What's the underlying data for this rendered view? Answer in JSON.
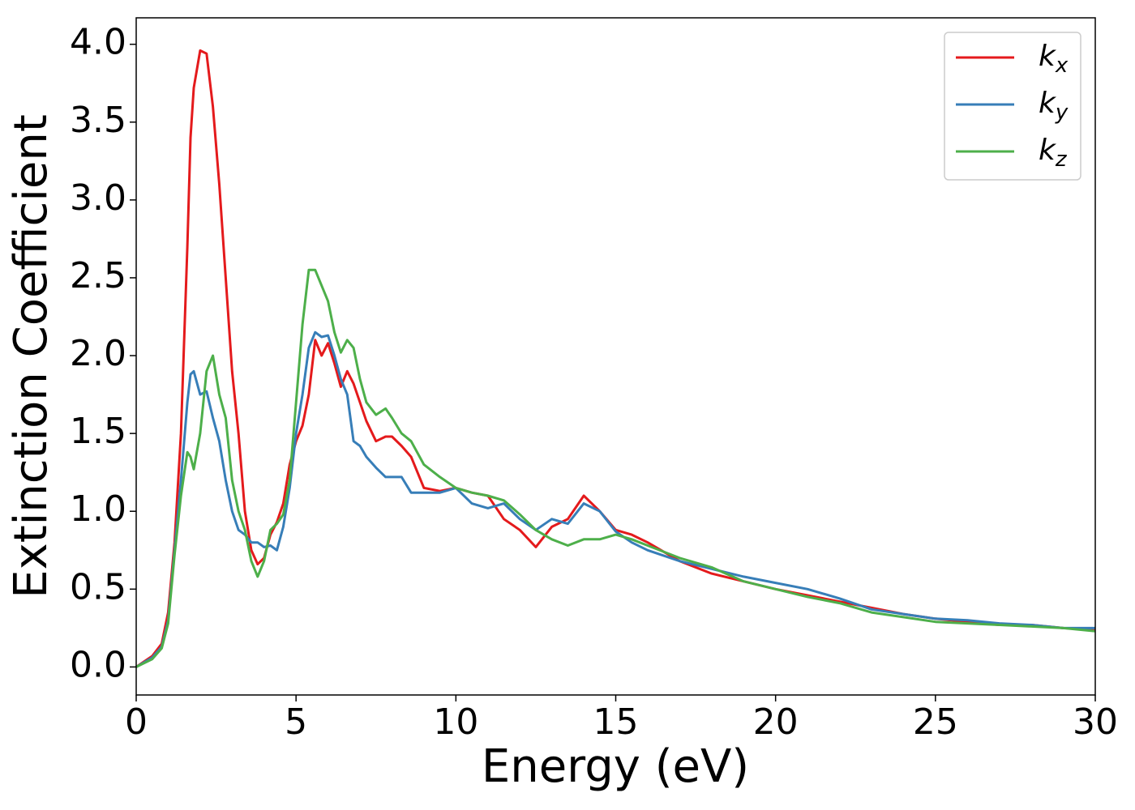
{
  "chart_data": {
    "type": "line",
    "xlabel": "Energy (eV)",
    "ylabel": "Extinction Coefficient",
    "x": [
      0,
      0.5,
      0.8,
      1.0,
      1.2,
      1.4,
      1.6,
      1.7,
      1.8,
      2.0,
      2.2,
      2.4,
      2.6,
      2.8,
      3.0,
      3.2,
      3.4,
      3.6,
      3.8,
      4.0,
      4.2,
      4.4,
      4.6,
      4.8,
      5.0,
      5.2,
      5.4,
      5.6,
      5.8,
      6.0,
      6.2,
      6.4,
      6.6,
      6.8,
      7.0,
      7.2,
      7.5,
      7.8,
      8.0,
      8.3,
      8.6,
      9.0,
      9.5,
      10,
      10.5,
      11,
      11.5,
      12,
      12.5,
      13,
      13.5,
      14,
      14.5,
      15,
      15.5,
      16,
      17,
      18,
      19,
      20,
      21,
      22,
      23,
      24,
      25,
      26,
      27,
      28,
      29,
      30
    ],
    "series": [
      {
        "name": "kx",
        "color": "#e41a1c",
        "values": [
          0,
          0.07,
          0.15,
          0.35,
          0.8,
          1.5,
          2.7,
          3.4,
          3.72,
          3.96,
          3.94,
          3.6,
          3.1,
          2.5,
          1.9,
          1.5,
          1.0,
          0.75,
          0.66,
          0.7,
          0.85,
          0.93,
          1.05,
          1.3,
          1.45,
          1.55,
          1.75,
          2.1,
          2.0,
          2.08,
          1.95,
          1.8,
          1.9,
          1.82,
          1.7,
          1.58,
          1.45,
          1.48,
          1.48,
          1.42,
          1.35,
          1.15,
          1.13,
          1.15,
          1.12,
          1.1,
          0.95,
          0.88,
          0.77,
          0.9,
          0.95,
          1.1,
          1.0,
          0.88,
          0.85,
          0.8,
          0.68,
          0.6,
          0.55,
          0.5,
          0.46,
          0.42,
          0.38,
          0.34,
          0.31,
          0.29,
          0.27,
          0.27,
          0.25,
          0.24
        ]
      },
      {
        "name": "ky",
        "color": "#377eb8",
        "values": [
          0,
          0.06,
          0.13,
          0.3,
          0.75,
          1.2,
          1.7,
          1.88,
          1.9,
          1.75,
          1.77,
          1.6,
          1.45,
          1.2,
          1.0,
          0.88,
          0.85,
          0.8,
          0.8,
          0.77,
          0.78,
          0.75,
          0.9,
          1.15,
          1.5,
          1.75,
          2.05,
          2.15,
          2.12,
          2.13,
          2.0,
          1.85,
          1.75,
          1.45,
          1.42,
          1.35,
          1.28,
          1.22,
          1.22,
          1.22,
          1.12,
          1.12,
          1.12,
          1.15,
          1.05,
          1.02,
          1.05,
          0.95,
          0.88,
          0.95,
          0.92,
          1.05,
          1.0,
          0.87,
          0.8,
          0.75,
          0.68,
          0.63,
          0.58,
          0.54,
          0.5,
          0.44,
          0.37,
          0.34,
          0.31,
          0.3,
          0.28,
          0.27,
          0.25,
          0.25
        ]
      },
      {
        "name": "kz",
        "color": "#4daf4a",
        "values": [
          0,
          0.05,
          0.12,
          0.28,
          0.72,
          1.1,
          1.38,
          1.35,
          1.27,
          1.5,
          1.9,
          2.0,
          1.75,
          1.6,
          1.2,
          1.0,
          0.88,
          0.68,
          0.58,
          0.68,
          0.88,
          0.92,
          0.98,
          1.2,
          1.7,
          2.2,
          2.55,
          2.55,
          2.45,
          2.35,
          2.15,
          2.02,
          2.1,
          2.05,
          1.85,
          1.7,
          1.62,
          1.66,
          1.6,
          1.5,
          1.45,
          1.3,
          1.22,
          1.15,
          1.12,
          1.1,
          1.07,
          0.98,
          0.88,
          0.82,
          0.78,
          0.82,
          0.82,
          0.85,
          0.82,
          0.78,
          0.7,
          0.64,
          0.55,
          0.5,
          0.45,
          0.41,
          0.35,
          0.32,
          0.29,
          0.28,
          0.27,
          0.26,
          0.25,
          0.23
        ]
      }
    ],
    "xlim": [
      0,
      30
    ],
    "xticks": [
      0,
      5,
      10,
      15,
      20,
      25,
      30
    ],
    "ylim": [
      -0.18,
      4.17
    ],
    "yticks": [
      {
        "value": 0,
        "label": "0.0"
      },
      0.5,
      {
        "value": 1,
        "label": "1.0"
      },
      1.5,
      {
        "value": 2,
        "label": "2.0"
      },
      2.5,
      {
        "value": 3,
        "label": "3.0"
      },
      3.5,
      {
        "value": 4,
        "label": "4.0"
      }
    ],
    "legend": "upper right",
    "grid": false
  }
}
